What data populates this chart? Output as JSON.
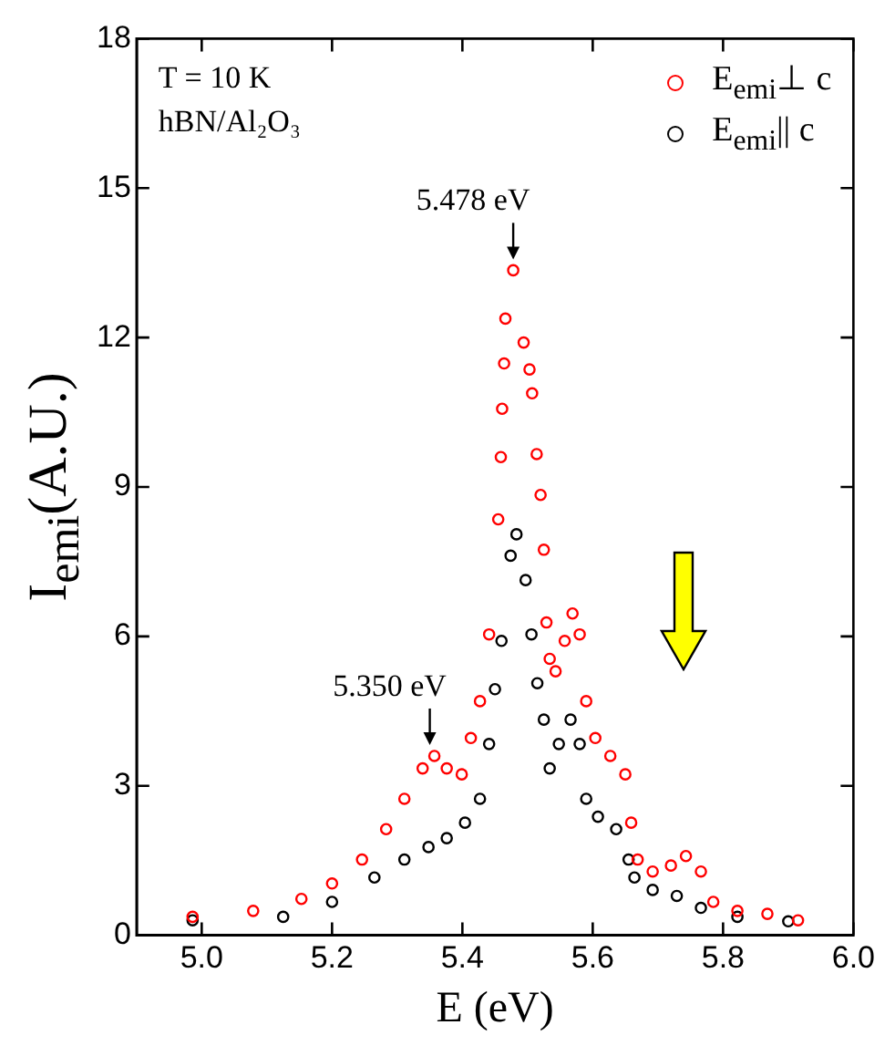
{
  "chart_data": {
    "type": "scatter",
    "xlabel": "E (eV)",
    "ylabel": "I$_{emi}$(A.U.)",
    "xlim": [
      4.9,
      6.0
    ],
    "ylim": [
      0,
      18
    ],
    "xticks": [
      {
        "value": 5,
        "label": "5.0"
      },
      5.2,
      5.4,
      5.6,
      5.8,
      {
        "value": 6,
        "label": "6.0"
      }
    ],
    "yticks": [
      0,
      3,
      6,
      9,
      12,
      15,
      18
    ],
    "grid": false,
    "legend": "top right",
    "marker": "circle",
    "annotations": [
      "T = 10 K",
      "hBN/Al₂O₃",
      {
        "text": "5.478 eV",
        "x": 5.478,
        "y": 13.35
      },
      {
        "text": "5.350 eV",
        "x": 5.35,
        "y": 3.6
      }
    ],
    "series": [
      {
        "name": "E$_{emi}$⊥ c",
        "color": "#ff0000",
        "x": [
          4.986,
          5.079,
          5.153,
          5.2,
          5.246,
          5.283,
          5.311,
          5.339,
          5.357,
          5.376,
          5.399,
          5.413,
          5.427,
          5.441,
          5.455,
          5.459,
          5.461,
          5.464,
          5.466,
          5.478,
          5.494,
          5.503,
          5.507,
          5.514,
          5.52,
          5.525,
          5.529,
          5.534,
          5.543,
          5.557,
          5.569,
          5.58,
          5.59,
          5.604,
          5.627,
          5.65,
          5.659,
          5.669,
          5.692,
          5.72,
          5.743,
          5.766,
          5.785,
          5.822,
          5.868,
          5.915
        ],
        "values": [
          0.37,
          0.49,
          0.73,
          1.04,
          1.52,
          2.13,
          2.74,
          3.35,
          3.6,
          3.35,
          3.23,
          3.96,
          4.7,
          6.04,
          8.35,
          9.6,
          10.57,
          11.48,
          12.38,
          13.35,
          11.9,
          11.36,
          10.88,
          9.66,
          8.84,
          7.74,
          6.28,
          5.55,
          5.3,
          5.91,
          6.46,
          6.04,
          4.7,
          3.96,
          3.6,
          3.23,
          2.26,
          1.52,
          1.28,
          1.4,
          1.59,
          1.28,
          0.67,
          0.49,
          0.43,
          0.3
        ]
      },
      {
        "name": "E$_{emi}$|| c",
        "color": "#000000",
        "x": [
          4.986,
          5.125,
          5.2,
          5.265,
          5.311,
          5.348,
          5.376,
          5.404,
          5.427,
          5.441,
          5.45,
          5.46,
          5.474,
          5.483,
          5.497,
          5.506,
          5.515,
          5.525,
          5.534,
          5.548,
          5.566,
          5.58,
          5.59,
          5.608,
          5.636,
          5.655,
          5.664,
          5.692,
          5.729,
          5.766,
          5.822,
          5.9
        ],
        "values": [
          0.3,
          0.37,
          0.67,
          1.16,
          1.52,
          1.77,
          1.95,
          2.26,
          2.74,
          3.84,
          4.94,
          5.91,
          7.62,
          8.05,
          7.13,
          6.04,
          5.06,
          4.33,
          3.35,
          3.84,
          4.33,
          3.84,
          2.74,
          2.38,
          2.13,
          1.52,
          1.16,
          0.91,
          0.79,
          0.55,
          0.37,
          0.28
        ]
      }
    ]
  }
}
